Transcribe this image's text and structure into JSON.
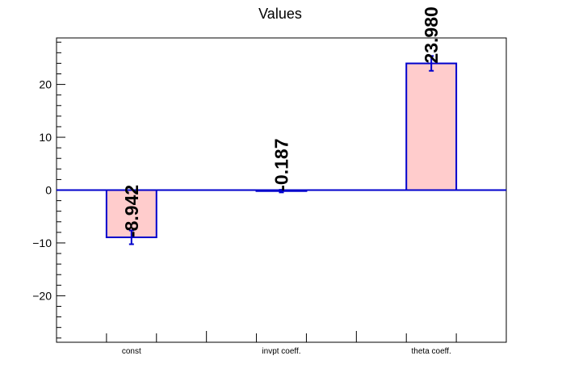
{
  "chart_data": {
    "type": "bar",
    "title": "Values",
    "categories": [
      "const",
      "invpt coeff.",
      "theta coeff."
    ],
    "values": [
      -8.942,
      -0.187,
      23.98
    ],
    "value_labels": [
      "-8.942",
      "-0.187",
      "23.980"
    ],
    "errors": [
      1.3,
      0.25,
      1.4
    ],
    "ylim": [
      -28.8,
      28.8
    ],
    "yticks": [
      -20,
      -10,
      0,
      10,
      20
    ],
    "ytick_labels": [
      "−20",
      "−10",
      "0",
      "10",
      "20"
    ],
    "xlabel": "",
    "ylabel": "",
    "grid": false,
    "colors": {
      "bar_fill": "#ffcccc",
      "bar_edge": "#0000cc",
      "zero_line": "#0000cc",
      "error_bar": "#0000cc",
      "axis": "#000000"
    }
  }
}
